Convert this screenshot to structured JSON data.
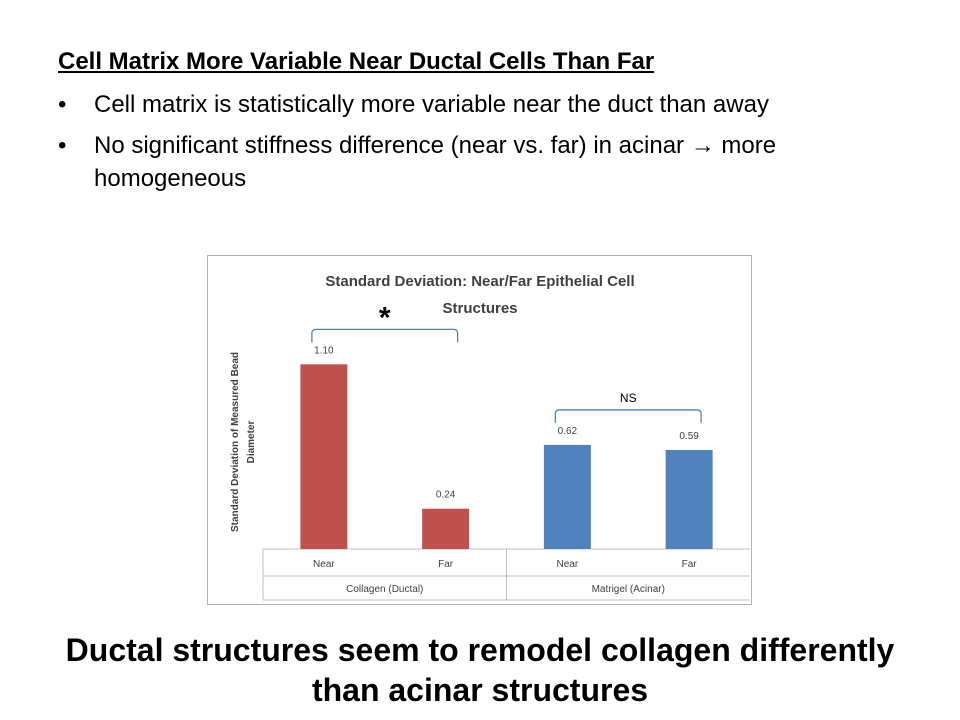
{
  "heading": "Cell Matrix More Variable Near Ductal Cells Than Far",
  "bullets": [
    {
      "marker": "•",
      "text": "Cell matrix is statistically more variable near the duct than away"
    },
    {
      "marker": "•",
      "text": "No significant stiffness difference (near vs. far) in acinar → more homogeneous"
    }
  ],
  "conclusion": "Ductal structures seem to remodel collagen differently than acinar structures",
  "chart_data": {
    "type": "bar",
    "title_line1": "Standard Deviation: Near/Far Epithelial Cell",
    "title_line2": "Structures",
    "ylabel_line1": "Standard Deviation of Measured Bead",
    "ylabel_line2": "Diameter",
    "categories": [
      "Near",
      "Far",
      "Near",
      "Far"
    ],
    "groups": [
      {
        "label": "Collagen (Ductal)",
        "categories": [
          0,
          1
        ]
      },
      {
        "label": "Matrigel (Acinar)",
        "categories": [
          2,
          3
        ]
      }
    ],
    "values": [
      1.1,
      0.24,
      0.62,
      0.59
    ],
    "data_labels": [
      "1.10",
      "0.24",
      "0.62",
      "0.59"
    ],
    "bar_colors": [
      "#c0504d",
      "#c0504d",
      "#4f81bd",
      "#4f81bd"
    ],
    "ylim": [
      0,
      1.4
    ],
    "grid": false,
    "annotations": [
      {
        "text": "*",
        "from": 0,
        "to": 1
      },
      {
        "text": "NS",
        "from": 2,
        "to": 3
      }
    ],
    "bracket_color": "#4f81bd"
  }
}
